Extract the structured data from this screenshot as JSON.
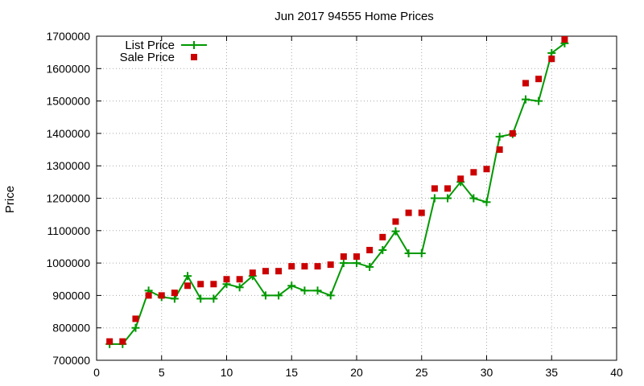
{
  "chart_data": {
    "type": "scatter",
    "title": "Jun 2017 94555 Home Prices",
    "xlabel": "",
    "ylabel": "Price",
    "xlim": [
      0,
      40
    ],
    "ylim": [
      700000,
      1700000
    ],
    "xticks": [
      0,
      5,
      10,
      15,
      20,
      25,
      30,
      35,
      40
    ],
    "yticks": [
      700000,
      800000,
      900000,
      1000000,
      1100000,
      1200000,
      1300000,
      1400000,
      1500000,
      1600000,
      1700000
    ],
    "grid": true,
    "legend_position": "top-left",
    "series": [
      {
        "name": "List Price",
        "style": "line+cross",
        "color": "#009900",
        "x": [
          1,
          2,
          3,
          4,
          5,
          6,
          7,
          8,
          9,
          10,
          11,
          12,
          13,
          14,
          15,
          16,
          17,
          18,
          19,
          20,
          21,
          22,
          23,
          24,
          25,
          26,
          27,
          28,
          29,
          30,
          31,
          32,
          33,
          34,
          35,
          36
        ],
        "y": [
          750000,
          750000,
          800000,
          915000,
          895000,
          890000,
          960000,
          890000,
          890000,
          935000,
          925000,
          960000,
          900000,
          900000,
          930000,
          915000,
          915000,
          900000,
          1000000,
          1000000,
          988000,
          1040000,
          1098000,
          1030000,
          1030000,
          1200000,
          1200000,
          1250000,
          1200000,
          1188000,
          1390000,
          1398000,
          1505000,
          1500000,
          1648000,
          1678000
        ]
      },
      {
        "name": "Sale Price",
        "style": "square-marker",
        "color": "#cc0000",
        "x": [
          1,
          2,
          3,
          4,
          5,
          6,
          7,
          8,
          9,
          10,
          11,
          12,
          13,
          14,
          15,
          16,
          17,
          18,
          19,
          20,
          21,
          22,
          23,
          24,
          25,
          26,
          27,
          28,
          29,
          30,
          31,
          32,
          33,
          34,
          35,
          36
        ],
        "y": [
          758000,
          758000,
          828000,
          900000,
          900000,
          908000,
          930000,
          935000,
          935000,
          950000,
          950000,
          970000,
          975000,
          975000,
          990000,
          990000,
          990000,
          995000,
          1020000,
          1020000,
          1040000,
          1080000,
          1128000,
          1155000,
          1155000,
          1230000,
          1230000,
          1260000,
          1280000,
          1290000,
          1350000,
          1400000,
          1555000,
          1568000,
          1630000,
          1690000
        ]
      }
    ]
  }
}
